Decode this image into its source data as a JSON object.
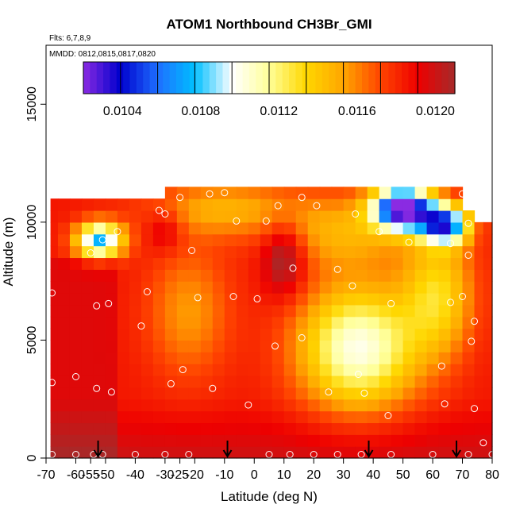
{
  "chart_data": {
    "type": "heatmap",
    "title": "ATOM1 Northbound CH3Br_GMI",
    "annotations": [
      "Flts: 6,7,8,9",
      "MMDD: 0812,0815,0817,0820"
    ],
    "xlabel": "Latitude (deg N)",
    "ylabel": "Altitude (m)",
    "xlim": [
      -70,
      80
    ],
    "ylim": [
      0,
      17500
    ],
    "x_ticks": [
      -70,
      -55,
      -40,
      -25,
      -10,
      0,
      10,
      20,
      30,
      40,
      50,
      60,
      70,
      80
    ],
    "x_tick_labels": [
      "-70",
      "-55",
      "-40",
      "-25",
      "-10",
      "0",
      "10",
      "20",
      "30",
      "40",
      "50",
      "60",
      "70",
      "80"
    ],
    "x_ticks_minor_labels": [
      {
        "value": -60,
        "label": "-60"
      },
      {
        "value": -50,
        "label": "-50"
      },
      {
        "value": -30,
        "label": "-30"
      },
      {
        "value": -20,
        "label": "-20"
      }
    ],
    "y_ticks": [
      0,
      5000,
      10000,
      15000
    ],
    "y_tick_labels": [
      "0",
      "5000",
      "10000",
      "15000"
    ],
    "colorbar": {
      "range": [
        0.0102,
        0.0121
      ],
      "ticks": [
        0.0104,
        0.0108,
        0.0112,
        0.0116,
        0.012
      ],
      "tick_labels": [
        "0.0104",
        "0.0108",
        "0.0112",
        "0.0116",
        "0.0120"
      ],
      "colors": [
        "#8a2be2",
        "#0000cd",
        "#1e6fff",
        "#00bfff",
        "#ffffff",
        "#ffff99",
        "#ffd700",
        "#ffa500",
        "#ff4500",
        "#ee0000",
        "#a52a2a"
      ]
    },
    "lat_bins": [
      -68,
      -64,
      -60,
      -56,
      -52,
      -48,
      -44,
      -40,
      -36,
      -32,
      -28,
      -24,
      -20,
      -16,
      -12,
      -8,
      -4,
      0,
      4,
      8,
      12,
      16,
      20,
      24,
      28,
      32,
      36,
      40,
      44,
      48,
      52,
      56,
      60,
      64,
      68,
      72,
      76,
      78
    ],
    "alt_bins": [
      250,
      750,
      1250,
      1750,
      2250,
      2750,
      3250,
      3750,
      4250,
      4750,
      5250,
      5750,
      6250,
      6750,
      7250,
      7750,
      8250,
      8750,
      9250,
      9750,
      10250,
      10750,
      11250
    ],
    "profile_arrows_lat": [
      -52.5,
      -9,
      38.5,
      68
    ],
    "sample_points": [
      [
        -68,
        150
      ],
      [
        -60,
        150
      ],
      [
        -54,
        150
      ],
      [
        -51,
        150
      ],
      [
        -40,
        150
      ],
      [
        -30,
        150
      ],
      [
        -22,
        150
      ],
      [
        5,
        150
      ],
      [
        12,
        150
      ],
      [
        20,
        150
      ],
      [
        28,
        150
      ],
      [
        36,
        150
      ],
      [
        46,
        150
      ],
      [
        60,
        150
      ],
      [
        72,
        150
      ],
      [
        80,
        150
      ],
      [
        -68,
        3200
      ],
      [
        -60,
        3450
      ],
      [
        -53,
        2950
      ],
      [
        -48,
        2800
      ],
      [
        -28,
        3150
      ],
      [
        -24,
        3750
      ],
      [
        -14,
        2950
      ],
      [
        -2,
        2250
      ],
      [
        25,
        2800
      ],
      [
        37,
        2750
      ],
      [
        45,
        1800
      ],
      [
        64,
        2300
      ],
      [
        74,
        2100
      ],
      [
        77,
        650
      ],
      [
        -68,
        7000
      ],
      [
        -53,
        6450
      ],
      [
        -49,
        6550
      ],
      [
        -38,
        5600
      ],
      [
        -36,
        7050
      ],
      [
        -19,
        6800
      ],
      [
        -7,
        6850
      ],
      [
        1,
        6750
      ],
      [
        7,
        4750
      ],
      [
        16,
        5100
      ],
      [
        28,
        8000
      ],
      [
        35,
        3550
      ],
      [
        33,
        7300
      ],
      [
        46,
        6550
      ],
      [
        63,
        3900
      ],
      [
        66,
        6600
      ],
      [
        70,
        6850
      ],
      [
        73,
        4950
      ],
      [
        74,
        5800
      ],
      [
        -55,
        8700
      ],
      [
        -51,
        9250
      ],
      [
        -46,
        9600
      ],
      [
        -21,
        8800
      ],
      [
        -32,
        10500
      ],
      [
        -30,
        10350
      ],
      [
        -25,
        11050
      ],
      [
        -15,
        11200
      ],
      [
        -10,
        11250
      ],
      [
        -6,
        10050
      ],
      [
        4,
        10050
      ],
      [
        8,
        10700
      ],
      [
        13,
        8050
      ],
      [
        16,
        11050
      ],
      [
        21,
        10700
      ],
      [
        34,
        10350
      ],
      [
        42,
        9600
      ],
      [
        52,
        9150
      ],
      [
        66,
        9100
      ],
      [
        70,
        11200
      ],
      [
        72,
        9950
      ],
      [
        72,
        8600
      ]
    ]
  }
}
